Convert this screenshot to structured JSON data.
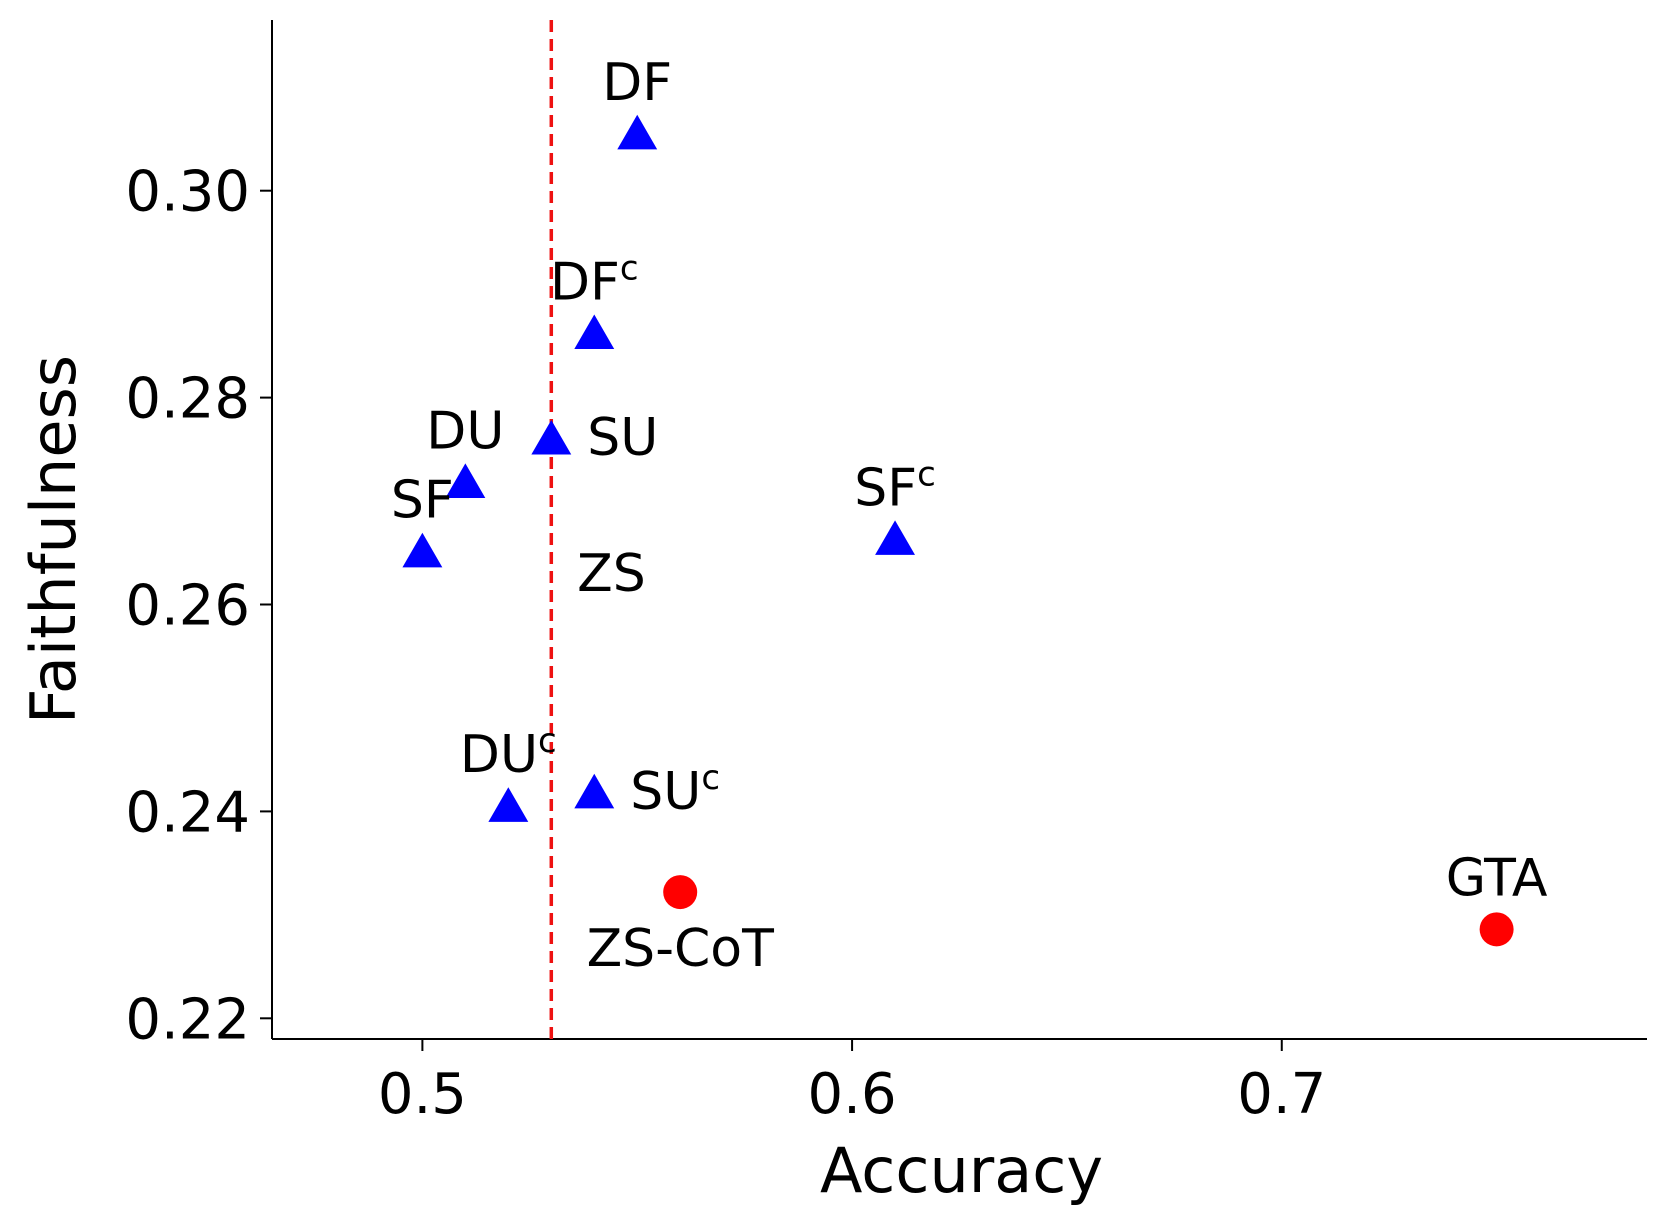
{
  "chart_data": {
    "type": "scatter",
    "title": "",
    "xlabel": "Accuracy",
    "ylabel": "Faithfulness",
    "xlim": [
      0.465,
      0.785
    ],
    "ylim": [
      0.218,
      0.3165
    ],
    "xticks": [
      {
        "value": 0.5,
        "label": "0.5"
      },
      {
        "value": 0.6,
        "label": "0.6"
      },
      {
        "value": 0.7,
        "label": "0.7"
      }
    ],
    "yticks": [
      {
        "value": 0.22,
        "label": "0.22"
      },
      {
        "value": 0.24,
        "label": "0.24"
      },
      {
        "value": 0.26,
        "label": "0.26"
      },
      {
        "value": 0.28,
        "label": "0.28"
      },
      {
        "value": 0.3,
        "label": "0.30"
      }
    ],
    "grid": false,
    "reference_line": {
      "orientation": "vertical",
      "x": 0.53,
      "color": "#ee1111",
      "style": "dashed"
    },
    "colors": {
      "triangle": "#0000ff",
      "circle": "#ff0000",
      "axis": "#000000"
    },
    "points": [
      {
        "label": "DF",
        "sup": "",
        "x": 0.55,
        "y": 0.3055,
        "marker": "triangle",
        "label_pos": "above"
      },
      {
        "label": "DF",
        "sup": "c",
        "x": 0.54,
        "y": 0.2862,
        "marker": "triangle",
        "label_pos": "above"
      },
      {
        "label": "SU",
        "sup": "",
        "x": 0.53,
        "y": 0.276,
        "marker": "triangle",
        "label_pos": "right"
      },
      {
        "label": "DU",
        "sup": "",
        "x": 0.51,
        "y": 0.2718,
        "marker": "triangle",
        "label_pos": "above"
      },
      {
        "label": "SF",
        "sup": "",
        "x": 0.5,
        "y": 0.2651,
        "marker": "triangle",
        "label_pos": "above"
      },
      {
        "label": "SF",
        "sup": "c",
        "x": 0.61,
        "y": 0.2663,
        "marker": "triangle",
        "label_pos": "above"
      },
      {
        "label": "DU",
        "sup": "c",
        "x": 0.52,
        "y": 0.2405,
        "marker": "triangle",
        "label_pos": "above"
      },
      {
        "label": "SU",
        "sup": "c",
        "x": 0.54,
        "y": 0.2418,
        "marker": "triangle",
        "label_pos": "right"
      },
      {
        "label": "ZS-CoT",
        "sup": "",
        "x": 0.56,
        "y": 0.2322,
        "marker": "circle",
        "label_pos": "below"
      },
      {
        "label": "GTA",
        "sup": "",
        "x": 0.75,
        "y": 0.2286,
        "marker": "circle",
        "label_pos": "above"
      }
    ],
    "text_annotations": [
      {
        "text": "ZS",
        "x": 0.536,
        "y": 0.2613
      }
    ]
  }
}
